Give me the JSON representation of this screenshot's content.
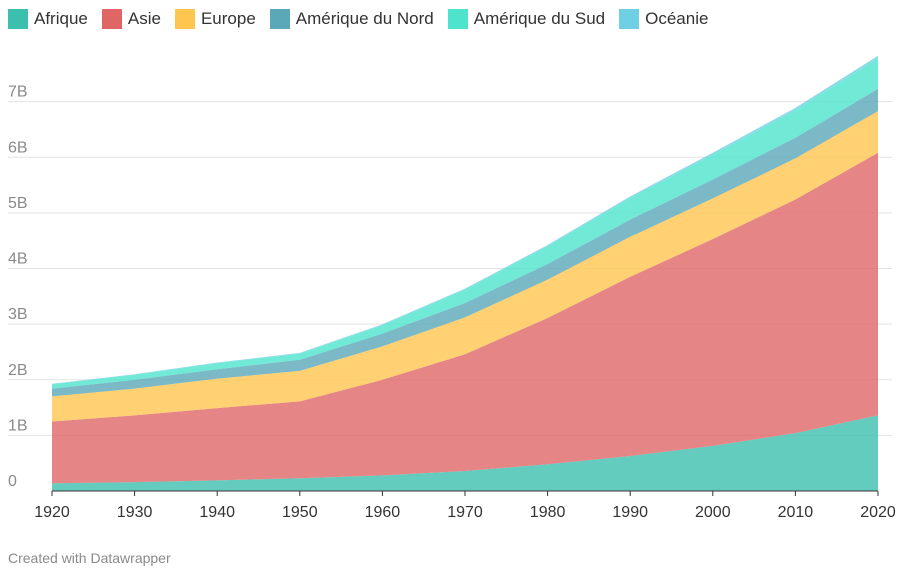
{
  "chart_data": {
    "type": "area",
    "stacked": true,
    "x": [
      1920,
      1930,
      1940,
      1950,
      1960,
      1970,
      1980,
      1990,
      2000,
      2010,
      2020
    ],
    "series": [
      {
        "name": "Afrique",
        "color": "#3dbfae",
        "values": [
          0.14,
          0.16,
          0.19,
          0.23,
          0.28,
          0.36,
          0.48,
          0.63,
          0.81,
          1.04,
          1.36
        ]
      },
      {
        "name": "Asie",
        "color": "#e06666",
        "values": [
          1.11,
          1.2,
          1.3,
          1.38,
          1.72,
          2.1,
          2.63,
          3.22,
          3.72,
          4.2,
          4.72
        ]
      },
      {
        "name": "Europe",
        "color": "#ffc64f",
        "values": [
          0.45,
          0.48,
          0.53,
          0.55,
          0.6,
          0.66,
          0.69,
          0.72,
          0.73,
          0.74,
          0.75
        ]
      },
      {
        "name": "Amérique du Nord",
        "color": "#5aa8b8",
        "values": [
          0.14,
          0.16,
          0.17,
          0.2,
          0.23,
          0.26,
          0.28,
          0.31,
          0.34,
          0.37,
          0.4
        ]
      },
      {
        "name": "Amérique du Sud",
        "color": "#4de3cd",
        "values": [
          0.08,
          0.09,
          0.11,
          0.11,
          0.15,
          0.24,
          0.32,
          0.39,
          0.45,
          0.5,
          0.55
        ]
      },
      {
        "name": "Océanie",
        "color": "#6fcfe3",
        "values": [
          0.008,
          0.01,
          0.011,
          0.013,
          0.016,
          0.019,
          0.023,
          0.027,
          0.031,
          0.037,
          0.043
        ]
      }
    ],
    "ylim": [
      0,
      8
    ],
    "y_ticks": [
      0,
      1,
      2,
      3,
      4,
      5,
      6,
      7
    ],
    "y_tick_labels": [
      "0",
      "1B",
      "2B",
      "3B",
      "4B",
      "5B",
      "6B",
      "7B"
    ],
    "x_tick_labels": [
      "1920",
      "1930",
      "1940",
      "1950",
      "1960",
      "1970",
      "1980",
      "1990",
      "2000",
      "2010",
      "2020"
    ],
    "grid": true,
    "legend": "top-left"
  },
  "credit": "Created with Datawrapper"
}
